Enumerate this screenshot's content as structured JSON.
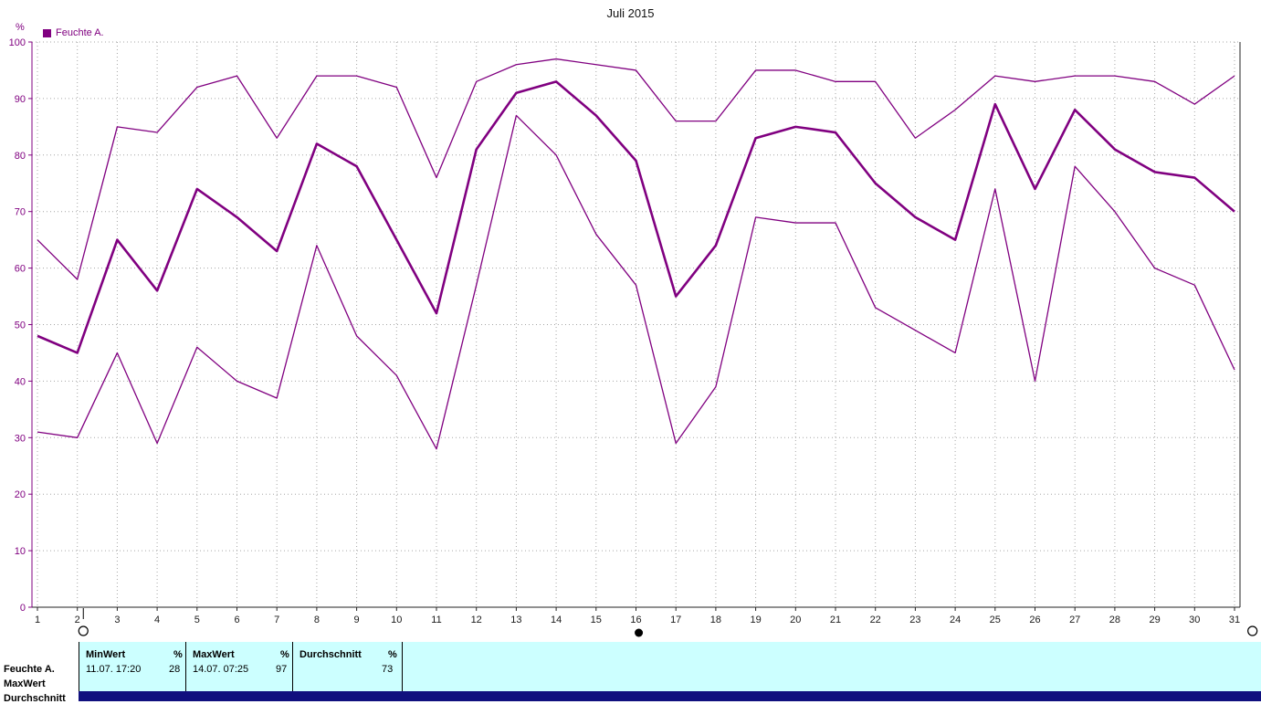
{
  "title": "Juli 2015",
  "y_axis_unit": "%",
  "legend": {
    "label": "Feuchte A.",
    "color": "#800080"
  },
  "colors": {
    "line": "#800080",
    "table_bg": "#ccffff",
    "bottom_bar": "#10107e"
  },
  "chart_data": {
    "type": "line",
    "title": "Juli 2015",
    "ylabel": "%",
    "ylim": [
      0,
      100
    ],
    "yticks": [
      0,
      10,
      20,
      30,
      40,
      50,
      60,
      70,
      80,
      90,
      100
    ],
    "grid": true,
    "legend_position": "top-left",
    "x": [
      1,
      2,
      3,
      4,
      5,
      6,
      7,
      8,
      9,
      10,
      11,
      12,
      13,
      14,
      15,
      16,
      17,
      18,
      19,
      20,
      21,
      22,
      23,
      24,
      25,
      26,
      27,
      28,
      29,
      30,
      31
    ],
    "series": [
      {
        "name": "MaxWert",
        "emphasis": false,
        "values": [
          65,
          58,
          85,
          84,
          92,
          94,
          83,
          94,
          94,
          92,
          76,
          93,
          96,
          97,
          96,
          95,
          86,
          86,
          95,
          95,
          93,
          93,
          83,
          88,
          94,
          93,
          94,
          94,
          93,
          89,
          94
        ]
      },
      {
        "name": "Durchschnitt",
        "emphasis": true,
        "values": [
          48,
          45,
          65,
          56,
          74,
          69,
          63,
          82,
          78,
          65,
          52,
          81,
          91,
          93,
          87,
          79,
          55,
          64,
          83,
          85,
          84,
          75,
          69,
          65,
          89,
          74,
          88,
          81,
          77,
          76,
          70
        ]
      },
      {
        "name": "MinWert",
        "emphasis": false,
        "values": [
          31,
          30,
          45,
          29,
          46,
          40,
          37,
          64,
          48,
          41,
          28,
          57,
          87,
          80,
          66,
          57,
          29,
          39,
          69,
          68,
          68,
          53,
          49,
          45,
          74,
          40,
          78,
          70,
          60,
          57,
          42
        ]
      }
    ]
  },
  "markers": [
    {
      "shape": "open-circle",
      "day": 2.15,
      "handle": true
    },
    {
      "shape": "filled-circle",
      "day": 16.07
    },
    {
      "shape": "open-circle",
      "day": 31.45
    }
  ],
  "table": {
    "left_labels": [
      "Feuchte A.",
      "MaxWert",
      "Durchschnitt"
    ],
    "columns": [
      {
        "header": "MinWert",
        "unit": "%",
        "value": "11.07.  17:20",
        "percent": "28"
      },
      {
        "header": "MaxWert",
        "unit": "%",
        "value": "14.07.  07:25",
        "percent": "97"
      },
      {
        "header": "Durchschnitt",
        "unit": "%",
        "value": "",
        "percent": "73"
      }
    ]
  }
}
